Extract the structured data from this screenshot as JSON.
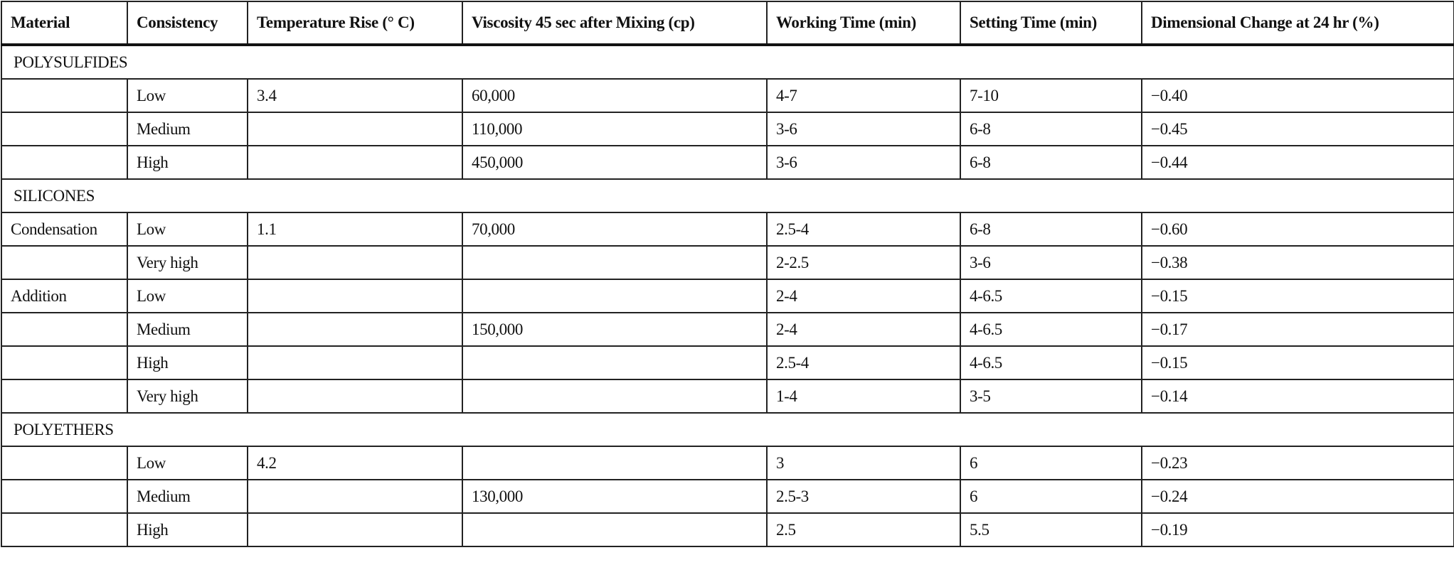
{
  "headers": [
    "Material",
    "Consistency",
    "Temperature Rise (° C)",
    "Viscosity 45 sec after Mixing (cp)",
    "Working Time (min)",
    "Setting Time (min)",
    "Dimensional Change at 24 hr (%)"
  ],
  "rows": [
    {
      "section": "POLYSULFIDES"
    },
    {
      "cells": [
        "",
        "Low",
        "3.4",
        "60,000",
        "4-7",
        "7-10",
        "−0.40"
      ]
    },
    {
      "cells": [
        "",
        "Medium",
        "",
        "110,000",
        "3-6",
        "6-8",
        "−0.45"
      ]
    },
    {
      "cells": [
        "",
        "High",
        "",
        "450,000",
        "3-6",
        "6-8",
        "−0.44"
      ]
    },
    {
      "section": "SILICONES"
    },
    {
      "cells": [
        "Condensation",
        "Low",
        "1.1",
        "70,000",
        "2.5-4",
        "6-8",
        "−0.60"
      ]
    },
    {
      "cells": [
        "",
        "Very high",
        "",
        "",
        "2-2.5",
        "3-6",
        "−0.38"
      ]
    },
    {
      "cells": [
        "Addition",
        "Low",
        "",
        "",
        "2-4",
        "4-6.5",
        "−0.15"
      ]
    },
    {
      "cells": [
        "",
        "Medium",
        "",
        "150,000",
        "2-4",
        "4-6.5",
        "−0.17"
      ]
    },
    {
      "cells": [
        "",
        "High",
        "",
        "",
        "2.5-4",
        "4-6.5",
        "−0.15"
      ]
    },
    {
      "cells": [
        "",
        "Very high",
        "",
        "",
        "1-4",
        "3-5",
        "−0.14"
      ]
    },
    {
      "section": "POLYETHERS"
    },
    {
      "cells": [
        "",
        "Low",
        "4.2",
        "",
        "3",
        "6",
        "−0.23"
      ]
    },
    {
      "cells": [
        "",
        "Medium",
        "",
        "130,000",
        "2.5-3",
        "6",
        "−0.24"
      ]
    },
    {
      "cells": [
        "",
        "High",
        "",
        "",
        "2.5",
        "5.5",
        "−0.19"
      ]
    }
  ]
}
